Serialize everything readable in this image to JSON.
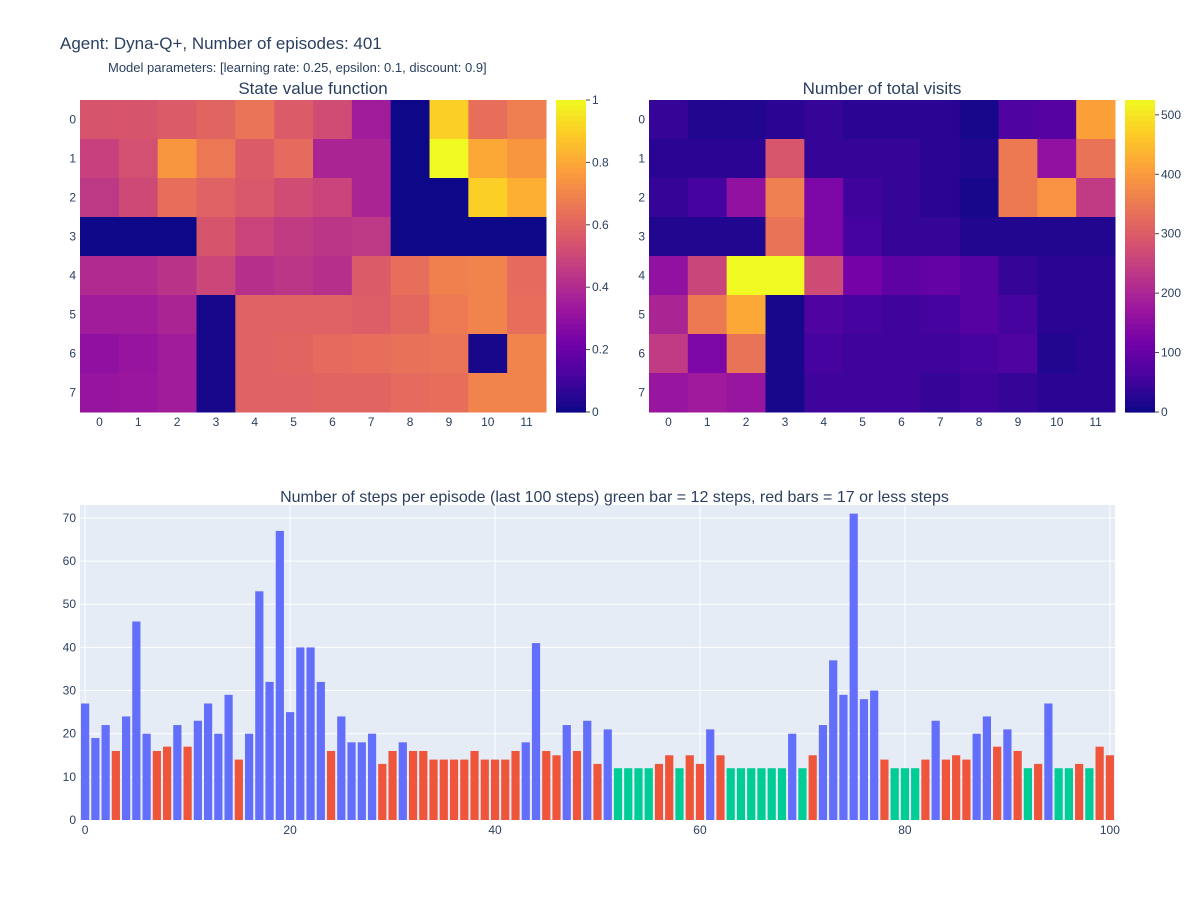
{
  "header": {
    "title": "Agent: Dyna-Q+, Number of episodes: 401",
    "subtitle": "Model parameters: [learning rate: 0.25, epsilon: 0.1, discount: 0.9]"
  },
  "chart_data": [
    {
      "type": "heatmap",
      "title": "State value function",
      "x_categories": [
        "0",
        "1",
        "2",
        "3",
        "4",
        "5",
        "6",
        "7",
        "8",
        "9",
        "10",
        "11"
      ],
      "y_categories": [
        "0",
        "1",
        "2",
        "3",
        "4",
        "5",
        "6",
        "7"
      ],
      "zlim": [
        0,
        1
      ],
      "colorbar_ticks": [
        "0",
        "0.2",
        "0.4",
        "0.6",
        "0.8",
        "1"
      ],
      "colorscale": "plasma",
      "z": [
        [
          0.55,
          0.55,
          0.57,
          0.6,
          0.65,
          0.57,
          0.52,
          0.35,
          0.0,
          0.9,
          0.63,
          0.68
        ],
        [
          0.48,
          0.53,
          0.75,
          0.66,
          0.57,
          0.62,
          0.38,
          0.38,
          0.0,
          1.0,
          0.8,
          0.75
        ],
        [
          0.45,
          0.51,
          0.63,
          0.59,
          0.56,
          0.52,
          0.49,
          0.38,
          0.0,
          0.0,
          0.9,
          0.82
        ],
        [
          0.0,
          0.0,
          0.0,
          0.55,
          0.49,
          0.46,
          0.44,
          0.45,
          0.0,
          0.0,
          0.0,
          0.0
        ],
        [
          0.4,
          0.4,
          0.43,
          0.5,
          0.42,
          0.44,
          0.42,
          0.57,
          0.63,
          0.69,
          0.7,
          0.62
        ],
        [
          0.35,
          0.35,
          0.38,
          0.02,
          0.59,
          0.59,
          0.59,
          0.58,
          0.61,
          0.67,
          0.7,
          0.63
        ],
        [
          0.3,
          0.32,
          0.35,
          0.02,
          0.59,
          0.6,
          0.62,
          0.63,
          0.64,
          0.65,
          0.02,
          0.7
        ],
        [
          0.32,
          0.33,
          0.35,
          0.02,
          0.59,
          0.59,
          0.6,
          0.6,
          0.62,
          0.63,
          0.7,
          0.7
        ]
      ]
    },
    {
      "type": "heatmap",
      "title": "Number of total visits",
      "x_categories": [
        "0",
        "1",
        "2",
        "3",
        "4",
        "5",
        "6",
        "7",
        "8",
        "9",
        "10",
        "11"
      ],
      "y_categories": [
        "0",
        "1",
        "2",
        "3",
        "4",
        "5",
        "6",
        "7"
      ],
      "zlim": [
        0,
        525
      ],
      "colorbar_ticks": [
        "0",
        "100",
        "200",
        "300",
        "400",
        "500"
      ],
      "colorscale": "plasma",
      "z": [
        [
          40,
          20,
          20,
          30,
          40,
          30,
          30,
          30,
          10,
          70,
          80,
          410
        ],
        [
          30,
          30,
          30,
          290,
          40,
          40,
          40,
          30,
          20,
          350,
          160,
          340
        ],
        [
          40,
          60,
          160,
          360,
          130,
          50,
          40,
          30,
          10,
          350,
          390,
          240
        ],
        [
          20,
          20,
          20,
          340,
          130,
          60,
          40,
          40,
          20,
          20,
          20,
          20
        ],
        [
          160,
          260,
          525,
          525,
          270,
          120,
          90,
          100,
          80,
          40,
          30,
          30
        ],
        [
          200,
          350,
          420,
          10,
          70,
          60,
          50,
          60,
          80,
          60,
          30,
          30
        ],
        [
          240,
          130,
          340,
          10,
          60,
          50,
          50,
          50,
          60,
          70,
          20,
          30
        ],
        [
          170,
          180,
          170,
          10,
          50,
          50,
          50,
          40,
          50,
          40,
          30,
          30
        ]
      ]
    },
    {
      "type": "bar",
      "title": "Number of steps per episode (last 100 steps) green bar = 12 steps, red bars = 17 or less steps",
      "xlim": [
        0,
        100
      ],
      "ylim": [
        0,
        73
      ],
      "x_ticks": [
        0,
        20,
        40,
        60,
        80,
        100
      ],
      "y_ticks": [
        0,
        10,
        20,
        30,
        40,
        50,
        60,
        70
      ],
      "colors": {
        "default": "#636efa",
        "twelve": "#00cc96",
        "low": "#ef553b"
      },
      "values": [
        27,
        19,
        22,
        16,
        24,
        46,
        20,
        16,
        17,
        22,
        17,
        23,
        27,
        20,
        29,
        14,
        20,
        53,
        32,
        67,
        25,
        40,
        40,
        32,
        16,
        24,
        18,
        18,
        20,
        13,
        16,
        18,
        16,
        16,
        14,
        14,
        14,
        14,
        16,
        14,
        14,
        14,
        16,
        18,
        41,
        16,
        15,
        22,
        16,
        23,
        13,
        21,
        12,
        12,
        12,
        12,
        13,
        15,
        12,
        15,
        13,
        21,
        15,
        12,
        12,
        12,
        12,
        12,
        12,
        20,
        12,
        15,
        22,
        37,
        29,
        71,
        28,
        30,
        14,
        12,
        12,
        12,
        14,
        23,
        14,
        15,
        14,
        20,
        24,
        17,
        21,
        16,
        12,
        13,
        27,
        12,
        12,
        13,
        12,
        17,
        15
      ]
    }
  ]
}
